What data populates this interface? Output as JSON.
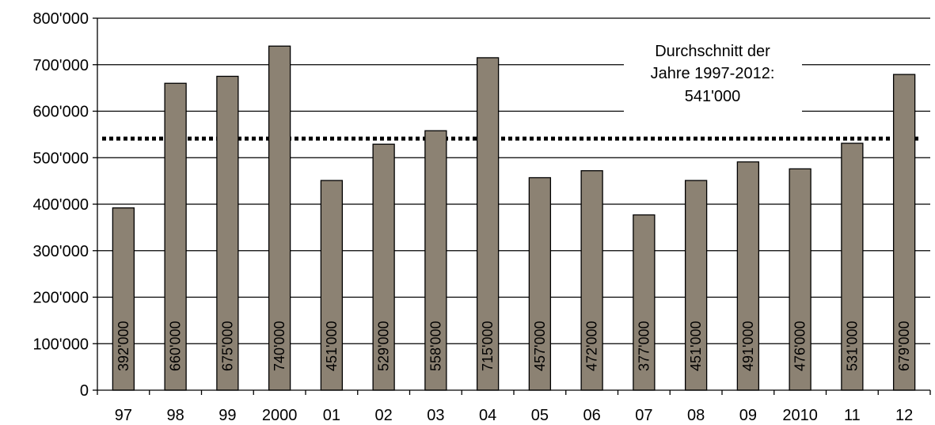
{
  "chart_data": {
    "type": "bar",
    "title": "",
    "xlabel": "",
    "ylabel": "",
    "categories": [
      "97",
      "98",
      "99",
      "2000",
      "01",
      "02",
      "03",
      "04",
      "05",
      "06",
      "07",
      "08",
      "09",
      "2010",
      "11",
      "12"
    ],
    "values": [
      392000,
      660000,
      675000,
      740000,
      451000,
      529000,
      558000,
      715000,
      457000,
      472000,
      377000,
      451000,
      491000,
      476000,
      531000,
      679000
    ],
    "value_labels": [
      "392'000",
      "660'000",
      "675'000",
      "740'000",
      "451'000",
      "529'000",
      "558'000",
      "715'000",
      "457'000",
      "472'000",
      "377'000",
      "451'000",
      "491'000",
      "476'000",
      "531'000",
      "679'000"
    ],
    "ylim": [
      0,
      800000
    ],
    "yticks": [
      0,
      100000,
      200000,
      300000,
      400000,
      500000,
      600000,
      700000,
      800000
    ],
    "ytick_labels": [
      "0",
      "100'000",
      "200'000",
      "300'000",
      "400'000",
      "500'000",
      "600'000",
      "700'000",
      "800'000"
    ],
    "grid": true,
    "legend": "none",
    "bar_color": "#8c8273",
    "average": {
      "value": 541000,
      "label_lines": [
        "Durchschnitt der",
        "Jahre 1997-2012:",
        "541'000"
      ]
    }
  }
}
